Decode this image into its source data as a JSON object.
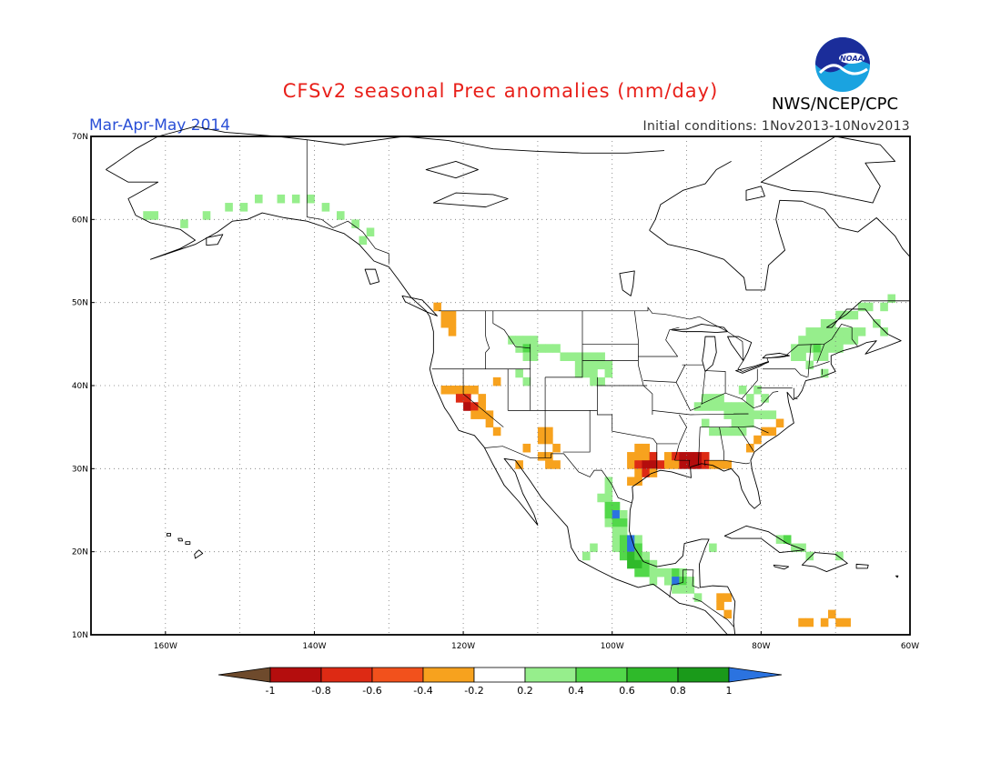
{
  "header": {
    "title": "CFSv2 seasonal Prec anomalies (mm/day)",
    "season": "Mar-Apr-May 2014",
    "initial_conditions": "Initial conditions: 1Nov2013-10Nov2013",
    "agency": "NWS/NCEP/CPC",
    "logo_text": "NOAA"
  },
  "map": {
    "lon_range": [
      -170,
      -60
    ],
    "lat_range": [
      10,
      70
    ],
    "lat_labels": [
      "10N",
      "20N",
      "30N",
      "40N",
      "50N",
      "60N",
      "70N"
    ],
    "lon_labels": [
      "160W",
      "140W",
      "120W",
      "100W",
      "80W",
      "60W"
    ],
    "grid": "dotted"
  },
  "colorbar": {
    "ticks": [
      "-1",
      "-0.8",
      "-0.6",
      "-0.4",
      "-0.2",
      "0.2",
      "0.4",
      "0.6",
      "0.8",
      "1"
    ],
    "colors": [
      "#6e4a2c",
      "#b40d0d",
      "#dd2a14",
      "#f2511c",
      "#f7a21e",
      "#ffffff",
      "#96ee8c",
      "#52d84a",
      "#2fba2a",
      "#1a9a1a",
      "#2b73e0"
    ]
  },
  "anomalies": {
    "colors": {
      "-0.6": "#b40d0d",
      "-0.4": "#dd2a14",
      "-0.2": "#f7a21e",
      "0.2": "#96ee8c",
      "0.4": "#52d84a",
      "0.6": "#2fba2a",
      "1": "#2b73e0"
    },
    "cells": [
      [
        -163,
        60,
        0.2
      ],
      [
        -162,
        60,
        0.2
      ],
      [
        -158,
        59,
        0.2
      ],
      [
        -155,
        60,
        0.2
      ],
      [
        -152,
        61,
        0.2
      ],
      [
        -150,
        61,
        0.2
      ],
      [
        -148,
        62,
        0.2
      ],
      [
        -145,
        62,
        0.2
      ],
      [
        -143,
        62,
        0.2
      ],
      [
        -141,
        62,
        0.2
      ],
      [
        -139,
        61,
        0.2
      ],
      [
        -137,
        60,
        0.2
      ],
      [
        -135,
        59,
        0.2
      ],
      [
        -133,
        58,
        0.2
      ],
      [
        -134,
        57,
        0.2
      ],
      [
        -124,
        49,
        -0.2
      ],
      [
        -123,
        48,
        -0.2
      ],
      [
        -122,
        48,
        -0.2
      ],
      [
        -123,
        47,
        -0.2
      ],
      [
        -122,
        47,
        -0.2
      ],
      [
        -122,
        46,
        -0.2
      ],
      [
        -123,
        39,
        -0.2
      ],
      [
        -122,
        39,
        -0.2
      ],
      [
        -121,
        39,
        -0.2
      ],
      [
        -120,
        39,
        -0.2
      ],
      [
        -119,
        39,
        -0.2
      ],
      [
        -121,
        38,
        -0.4
      ],
      [
        -120,
        38,
        -0.4
      ],
      [
        -120,
        37,
        -0.6
      ],
      [
        -119,
        37,
        -0.4
      ],
      [
        -118,
        38,
        -0.2
      ],
      [
        -118,
        37,
        -0.2
      ],
      [
        -117,
        36,
        -0.2
      ],
      [
        -118,
        36,
        -0.2
      ],
      [
        -119,
        36,
        -0.2
      ],
      [
        -116,
        40,
        -0.2
      ],
      [
        -117,
        35,
        -0.2
      ],
      [
        -116,
        34,
        -0.2
      ],
      [
        -110,
        34,
        -0.2
      ],
      [
        -109,
        34,
        -0.2
      ],
      [
        -110,
        33,
        -0.2
      ],
      [
        -109,
        33,
        -0.2
      ],
      [
        -108,
        32,
        -0.2
      ],
      [
        -109,
        31,
        -0.2
      ],
      [
        -110,
        31,
        -0.2
      ],
      [
        -108,
        30,
        -0.2
      ],
      [
        -109,
        30,
        -0.2
      ],
      [
        -112,
        32,
        -0.2
      ],
      [
        -113,
        30,
        -0.2
      ],
      [
        -97,
        32,
        -0.2
      ],
      [
        -96,
        32,
        -0.2
      ],
      [
        -98,
        31,
        -0.2
      ],
      [
        -97,
        31,
        -0.2
      ],
      [
        -96,
        31,
        -0.2
      ],
      [
        -95,
        31,
        -0.4
      ],
      [
        -98,
        30,
        -0.2
      ],
      [
        -97,
        30,
        -0.4
      ],
      [
        -96,
        30,
        -0.6
      ],
      [
        -95,
        30,
        -0.6
      ],
      [
        -94,
        30,
        -0.4
      ],
      [
        -97,
        29,
        -0.2
      ],
      [
        -96,
        29,
        -0.4
      ],
      [
        -95,
        29,
        -0.2
      ],
      [
        -97,
        28,
        -0.2
      ],
      [
        -98,
        28,
        -0.2
      ],
      [
        -93,
        31,
        -0.2
      ],
      [
        -92,
        31,
        -0.4
      ],
      [
        -91,
        31,
        -0.6
      ],
      [
        -90,
        31,
        -0.6
      ],
      [
        -89,
        31,
        -0.6
      ],
      [
        -88,
        31,
        -0.4
      ],
      [
        -92,
        30,
        -0.2
      ],
      [
        -91,
        30,
        -0.6
      ],
      [
        -90,
        30,
        -0.6
      ],
      [
        -89,
        30,
        -0.6
      ],
      [
        -88,
        30,
        -0.4
      ],
      [
        -87,
        30,
        -0.2
      ],
      [
        -86,
        30,
        -0.2
      ],
      [
        -85,
        30,
        -0.2
      ],
      [
        -93,
        30,
        -0.2
      ],
      [
        -81,
        33,
        -0.2
      ],
      [
        -80,
        34,
        -0.2
      ],
      [
        -79,
        34,
        -0.2
      ],
      [
        -78,
        35,
        -0.2
      ],
      [
        -82,
        32,
        -0.2
      ],
      [
        -114,
        45,
        0.2
      ],
      [
        -113,
        45,
        0.2
      ],
      [
        -112,
        45,
        0.2
      ],
      [
        -111,
        45,
        0.2
      ],
      [
        -113,
        44,
        0.2
      ],
      [
        -112,
        44,
        0.4
      ],
      [
        -111,
        44,
        0.2
      ],
      [
        -110,
        44,
        0.2
      ],
      [
        -109,
        44,
        0.2
      ],
      [
        -108,
        44,
        0.2
      ],
      [
        -112,
        43,
        0.2
      ],
      [
        -111,
        43,
        0.2
      ],
      [
        -107,
        43,
        0.2
      ],
      [
        -106,
        43,
        0.2
      ],
      [
        -105,
        43,
        0.2
      ],
      [
        -104,
        43,
        0.2
      ],
      [
        -103,
        43,
        0.2
      ],
      [
        -102,
        43,
        0.2
      ],
      [
        -105,
        42,
        0.2
      ],
      [
        -104,
        42,
        0.2
      ],
      [
        -103,
        42,
        0.2
      ],
      [
        -102,
        42,
        0.2
      ],
      [
        -101,
        42,
        0.2
      ],
      [
        -104,
        41,
        0.2
      ],
      [
        -103,
        41,
        0.2
      ],
      [
        -101,
        41,
        0.2
      ],
      [
        -102,
        40,
        0.2
      ],
      [
        -103,
        40,
        0.2
      ],
      [
        -105,
        41,
        0.2
      ],
      [
        -113,
        41,
        0.2
      ],
      [
        -112,
        40,
        0.2
      ],
      [
        -88,
        38,
        0.2
      ],
      [
        -87,
        38,
        0.2
      ],
      [
        -86,
        38,
        0.2
      ],
      [
        -89,
        37,
        0.2
      ],
      [
        -88,
        37,
        0.2
      ],
      [
        -87,
        37,
        0.2
      ],
      [
        -86,
        37,
        0.2
      ],
      [
        -85,
        37,
        0.2
      ],
      [
        -84,
        37,
        0.2
      ],
      [
        -83,
        37,
        0.2
      ],
      [
        -82,
        37,
        0.2
      ],
      [
        -85,
        36,
        0.2
      ],
      [
        -84,
        36,
        0.2
      ],
      [
        -83,
        36,
        0.2
      ],
      [
        -82,
        36,
        0.2
      ],
      [
        -81,
        36,
        0.2
      ],
      [
        -80,
        36,
        0.2
      ],
      [
        -79,
        36,
        0.2
      ],
      [
        -84,
        35,
        0.2
      ],
      [
        -83,
        35,
        0.2
      ],
      [
        -82,
        35,
        0.2
      ],
      [
        -82,
        38,
        0.2
      ],
      [
        -83,
        39,
        0.2
      ],
      [
        -81,
        39,
        0.2
      ],
      [
        -80,
        38,
        0.2
      ],
      [
        -88,
        35,
        0.2
      ],
      [
        -87,
        34,
        0.2
      ],
      [
        -86,
        34,
        0.2
      ],
      [
        -85,
        34,
        0.2
      ],
      [
        -84,
        34,
        0.2
      ],
      [
        -83,
        34,
        0.2
      ],
      [
        -74,
        46,
        0.2
      ],
      [
        -73,
        46,
        0.2
      ],
      [
        -72,
        46,
        0.2
      ],
      [
        -71,
        46,
        0.2
      ],
      [
        -70,
        46,
        0.2
      ],
      [
        -69,
        46,
        0.2
      ],
      [
        -68,
        46,
        0.2
      ],
      [
        -67,
        46,
        0.2
      ],
      [
        -75,
        45,
        0.2
      ],
      [
        -74,
        45,
        0.2
      ],
      [
        -73,
        45,
        0.2
      ],
      [
        -72,
        45,
        0.2
      ],
      [
        -71,
        45,
        0.2
      ],
      [
        -70,
        45,
        0.2
      ],
      [
        -69,
        45,
        0.2
      ],
      [
        -68,
        45,
        0.2
      ],
      [
        -76,
        44,
        0.2
      ],
      [
        -75,
        44,
        0.2
      ],
      [
        -74,
        44,
        0.2
      ],
      [
        -73,
        44,
        0.4
      ],
      [
        -72,
        44,
        0.2
      ],
      [
        -71,
        44,
        0.2
      ],
      [
        -70,
        44,
        0.2
      ],
      [
        -76,
        43,
        0.2
      ],
      [
        -75,
        43,
        0.2
      ],
      [
        -73,
        43,
        0.2
      ],
      [
        -72,
        43,
        0.2
      ],
      [
        -70,
        48,
        0.2
      ],
      [
        -69,
        48,
        0.2
      ],
      [
        -68,
        48,
        0.2
      ],
      [
        -67,
        49,
        0.2
      ],
      [
        -66,
        49,
        0.2
      ],
      [
        -64,
        49,
        0.2
      ],
      [
        -63,
        50,
        0.2
      ],
      [
        -71,
        47,
        0.2
      ],
      [
        -72,
        47,
        0.2
      ],
      [
        -65,
        47,
        0.2
      ],
      [
        -64,
        46,
        0.2
      ],
      [
        -72,
        41,
        0.2
      ],
      [
        -74,
        42,
        0.2
      ],
      [
        -101,
        28,
        0.2
      ],
      [
        -101,
        27,
        0.2
      ],
      [
        -102,
        26,
        0.2
      ],
      [
        -101,
        26,
        0.2
      ],
      [
        -101,
        25,
        0.4
      ],
      [
        -100,
        25,
        0.4
      ],
      [
        -101,
        24,
        0.4
      ],
      [
        -100,
        24,
        1
      ],
      [
        -99,
        24,
        0.2
      ],
      [
        -101,
        23,
        0.2
      ],
      [
        -100,
        23,
        0.4
      ],
      [
        -99,
        23,
        0.4
      ],
      [
        -99,
        22,
        0.2
      ],
      [
        -100,
        22,
        0.2
      ],
      [
        -100,
        21,
        0.2
      ],
      [
        -99,
        21,
        0.4
      ],
      [
        -98,
        21,
        1
      ],
      [
        -97,
        21,
        0.2
      ],
      [
        -100,
        20,
        0.2
      ],
      [
        -99,
        20,
        0.4
      ],
      [
        -98,
        20,
        1
      ],
      [
        -97,
        20,
        0.4
      ],
      [
        -99,
        19,
        0.4
      ],
      [
        -98,
        19,
        0.6
      ],
      [
        -97,
        19,
        0.4
      ],
      [
        -96,
        19,
        0.2
      ],
      [
        -98,
        18,
        0.6
      ],
      [
        -97,
        18,
        0.6
      ],
      [
        -96,
        18,
        0.4
      ],
      [
        -95,
        18,
        0.2
      ],
      [
        -97,
        17,
        0.4
      ],
      [
        -96,
        17,
        0.4
      ],
      [
        -95,
        17,
        0.2
      ],
      [
        -94,
        17,
        0.2
      ],
      [
        -93,
        17,
        0.2
      ],
      [
        -92,
        17,
        0.4
      ],
      [
        -91,
        17,
        0.2
      ],
      [
        -95,
        16,
        0.2
      ],
      [
        -93,
        16,
        0.2
      ],
      [
        -92,
        16,
        1
      ],
      [
        -91,
        16,
        0.4
      ],
      [
        -90,
        16,
        0.2
      ],
      [
        -92,
        15,
        0.2
      ],
      [
        -91,
        15,
        0.2
      ],
      [
        -90,
        15,
        0.2
      ],
      [
        -89,
        14,
        0.2
      ],
      [
        -104,
        19,
        0.2
      ],
      [
        -103,
        20,
        0.2
      ],
      [
        -78,
        21,
        0.2
      ],
      [
        -77,
        21,
        0.4
      ],
      [
        -76,
        20,
        0.2
      ],
      [
        -75,
        20,
        0.2
      ],
      [
        -74,
        19,
        0.2
      ],
      [
        -70,
        19,
        0.2
      ],
      [
        -87,
        20,
        0.2
      ],
      [
        -86,
        14,
        -0.2
      ],
      [
        -85,
        14,
        -0.2
      ],
      [
        -86,
        13,
        -0.2
      ],
      [
        -85,
        12,
        -0.2
      ],
      [
        -75,
        11,
        -0.2
      ],
      [
        -74,
        11,
        -0.2
      ],
      [
        -72,
        11,
        -0.2
      ],
      [
        -71,
        12,
        -0.2
      ],
      [
        -70,
        11,
        -0.2
      ],
      [
        -69,
        11,
        -0.2
      ]
    ]
  }
}
